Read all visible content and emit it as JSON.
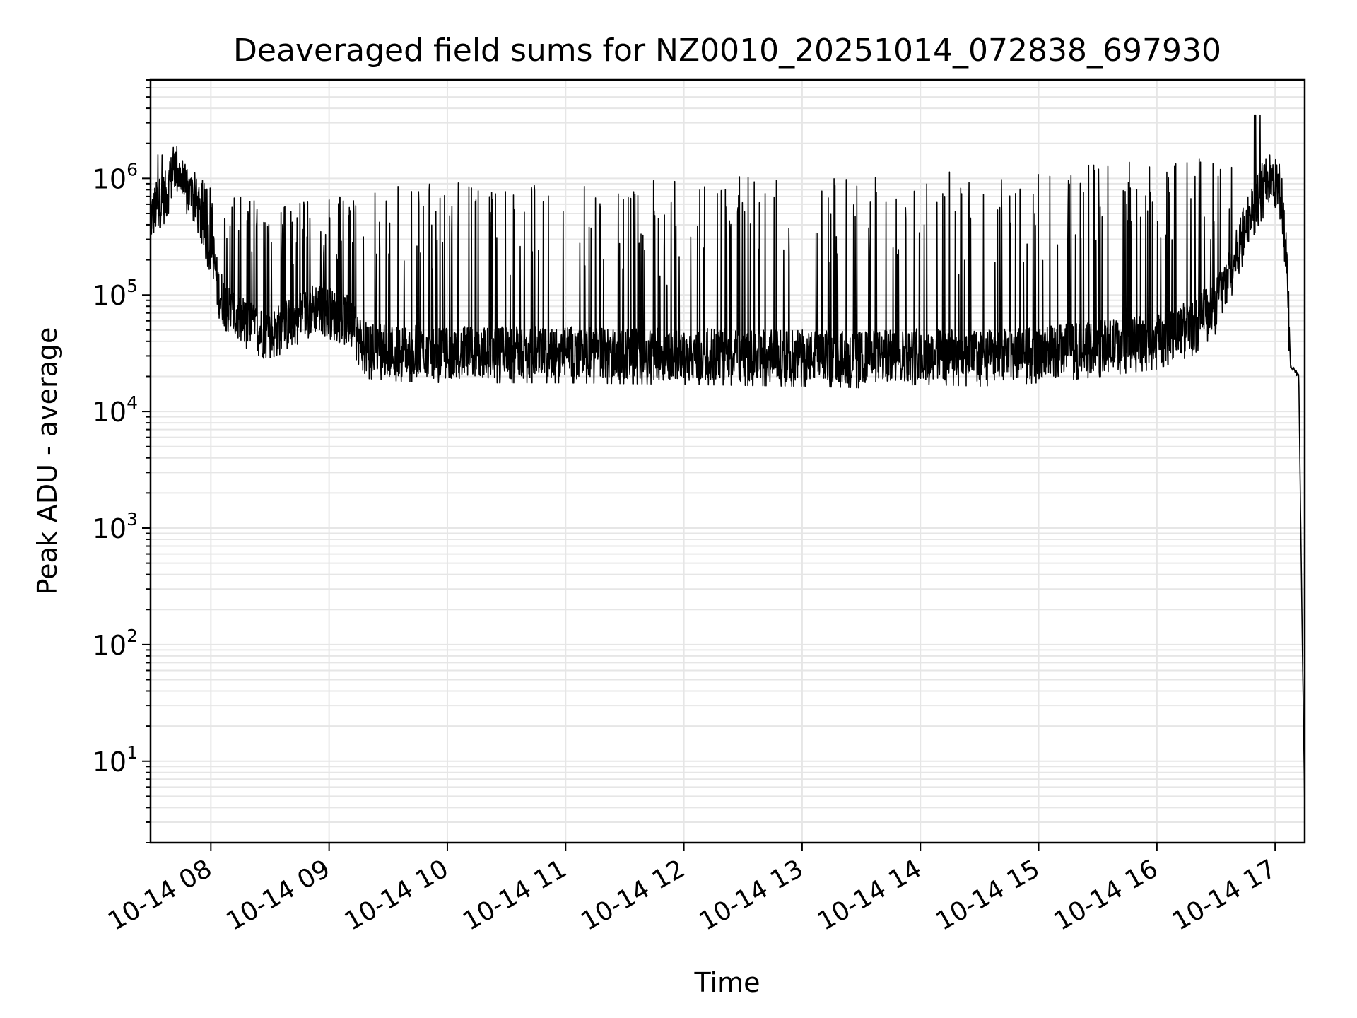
{
  "chart_data": {
    "type": "line",
    "title": "Deaveraged field sums for NZ0010_20251014_072838_697930",
    "xlabel": "Time",
    "ylabel": "Peak ADU - average",
    "yscale": "log",
    "ylim": [
      2,
      7000000
    ],
    "xlim_hours": [
      7.49,
      17.25
    ],
    "grid": true,
    "x_ticks": [
      {
        "hour": 8,
        "label": "10-14 08"
      },
      {
        "hour": 9,
        "label": "10-14 09"
      },
      {
        "hour": 10,
        "label": "10-14 10"
      },
      {
        "hour": 11,
        "label": "10-14 11"
      },
      {
        "hour": 12,
        "label": "10-14 12"
      },
      {
        "hour": 13,
        "label": "10-14 13"
      },
      {
        "hour": 14,
        "label": "10-14 14"
      },
      {
        "hour": 15,
        "label": "10-14 15"
      },
      {
        "hour": 16,
        "label": "10-14 16"
      },
      {
        "hour": 17,
        "label": "10-14 17"
      }
    ],
    "y_ticks": [
      {
        "exp": 1,
        "base": "10",
        "sup": "1"
      },
      {
        "exp": 2,
        "base": "10",
        "sup": "2"
      },
      {
        "exp": 3,
        "base": "10",
        "sup": "3"
      },
      {
        "exp": 4,
        "base": "10",
        "sup": "4"
      },
      {
        "exp": 5,
        "base": "10",
        "sup": "5"
      },
      {
        "exp": 6,
        "base": "10",
        "sup": "6"
      }
    ],
    "series": [
      {
        "name": "field sums",
        "color": "#000000",
        "baseline_envelope": [
          [
            7.49,
            450000
          ],
          [
            7.55,
            600000
          ],
          [
            7.62,
            700000
          ],
          [
            7.7,
            1300000
          ],
          [
            7.78,
            800000
          ],
          [
            7.88,
            600000
          ],
          [
            7.95,
            330000
          ],
          [
            8.02,
            230000
          ],
          [
            8.06,
            110000
          ],
          [
            8.15,
            75000
          ],
          [
            8.3,
            55000
          ],
          [
            8.5,
            45000
          ],
          [
            8.7,
            60000
          ],
          [
            8.9,
            80000
          ],
          [
            9.0,
            70000
          ],
          [
            9.15,
            60000
          ],
          [
            9.3,
            35000
          ],
          [
            9.6,
            33000
          ],
          [
            10.0,
            32000
          ],
          [
            11.0,
            32000
          ],
          [
            12.0,
            31000
          ],
          [
            12.9,
            30000
          ],
          [
            13.0,
            30000
          ],
          [
            13.5,
            29000
          ],
          [
            14.0,
            31000
          ],
          [
            14.5,
            30000
          ],
          [
            15.0,
            32000
          ],
          [
            15.5,
            36000
          ],
          [
            16.0,
            42000
          ],
          [
            16.3,
            55000
          ],
          [
            16.5,
            85000
          ],
          [
            16.65,
            180000
          ],
          [
            16.75,
            400000
          ],
          [
            16.85,
            700000
          ],
          [
            16.95,
            1000000
          ],
          [
            17.05,
            800000
          ],
          [
            17.1,
            200000
          ],
          [
            17.13,
            25000
          ],
          [
            17.17,
            22000
          ],
          [
            17.2,
            20000
          ],
          [
            17.23,
            100
          ],
          [
            17.25,
            4
          ]
        ],
        "spike_peak_envelope": [
          [
            7.6,
            1900000
          ],
          [
            8.0,
            850000
          ],
          [
            8.5,
            600000
          ],
          [
            9.0,
            700000
          ],
          [
            9.5,
            850000
          ],
          [
            10.0,
            950000
          ],
          [
            11.0,
            1050000
          ],
          [
            12.0,
            1050000
          ],
          [
            12.5,
            1050000
          ],
          [
            13.0,
            1050000
          ],
          [
            13.5,
            1100000
          ],
          [
            14.0,
            1150000
          ],
          [
            14.5,
            1200000
          ],
          [
            15.0,
            1250000
          ],
          [
            15.5,
            1350000
          ],
          [
            16.0,
            1450000
          ],
          [
            16.5,
            1550000
          ],
          [
            16.85,
            3500000
          ]
        ]
      }
    ]
  }
}
